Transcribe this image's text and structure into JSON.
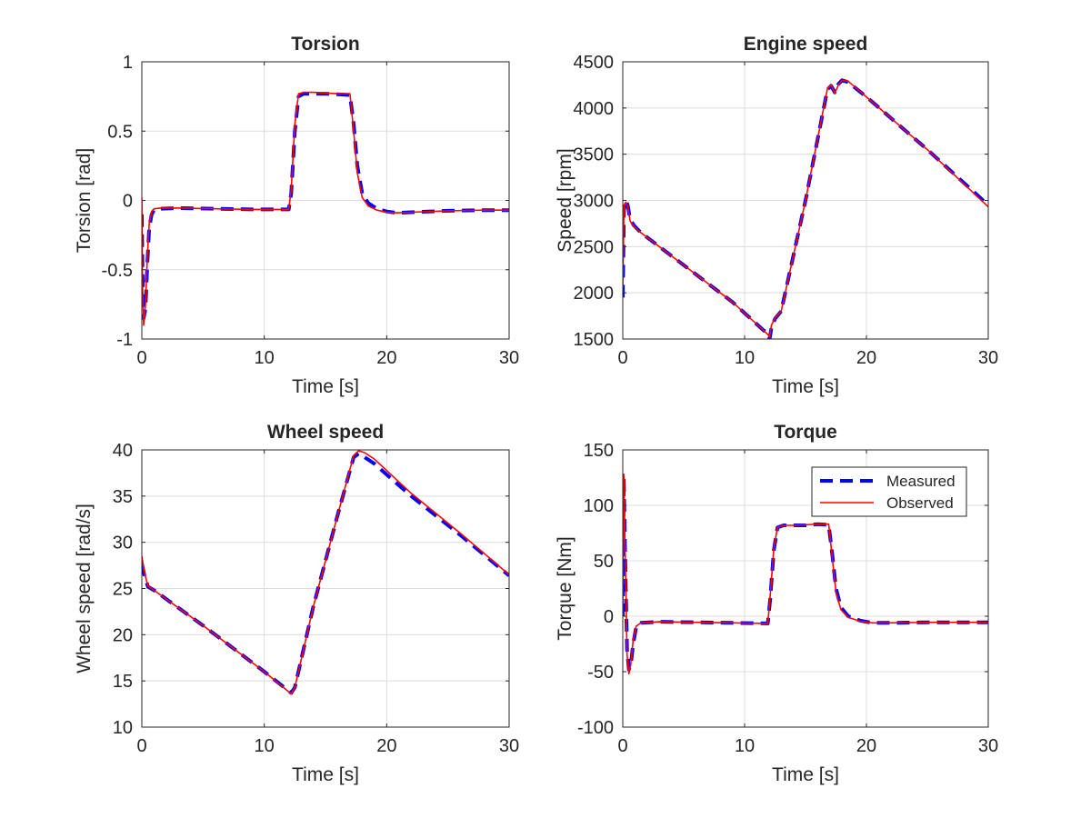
{
  "chart_data": [
    {
      "type": "line",
      "title": "Torsion",
      "xlabel": "Time [s]",
      "ylabel": "Torsion [rad]",
      "xlim": [
        0,
        30
      ],
      "ylim": [
        -1,
        1
      ],
      "xticks": [
        0,
        10,
        20,
        30
      ],
      "yticks": [
        -1,
        -0.5,
        0,
        0.5,
        1
      ],
      "ytick_labels": [
        "-1",
        "-0.5",
        "0",
        "0.5",
        "1"
      ],
      "grid": true,
      "series": [
        {
          "name": "Measured",
          "color": "#0000ff",
          "style": "dashed",
          "x": [
            0,
            0.05,
            0.15,
            0.3,
            0.45,
            0.6,
            0.8,
            1.0,
            1.5,
            3,
            6,
            9,
            12.0,
            12.2,
            12.5,
            12.8,
            13.2,
            14,
            15,
            16,
            17.0,
            17.3,
            17.6,
            18.0,
            18.5,
            19.2,
            20,
            20.8,
            22,
            25,
            28,
            30
          ],
          "y": [
            -0.1,
            -0.5,
            -0.85,
            -0.78,
            -0.45,
            -0.2,
            -0.1,
            -0.07,
            -0.06,
            -0.055,
            -0.06,
            -0.065,
            -0.065,
            0.05,
            0.5,
            0.75,
            0.77,
            0.77,
            0.77,
            0.765,
            0.76,
            0.55,
            0.25,
            0.05,
            -0.02,
            -0.06,
            -0.08,
            -0.09,
            -0.085,
            -0.075,
            -0.07,
            -0.07
          ]
        },
        {
          "name": "Observed",
          "color": "#ff0000",
          "style": "solid",
          "x": [
            0,
            0.05,
            0.15,
            0.3,
            0.45,
            0.6,
            0.8,
            1.0,
            1.5,
            3,
            6,
            9,
            12.0,
            12.2,
            12.5,
            12.8,
            13.2,
            14,
            15,
            16,
            17.0,
            17.3,
            17.6,
            18.0,
            18.5,
            19.2,
            20,
            20.8,
            22,
            25,
            28,
            30
          ],
          "y": [
            0.02,
            -0.6,
            -0.9,
            -0.75,
            -0.4,
            -0.17,
            -0.08,
            -0.06,
            -0.055,
            -0.055,
            -0.06,
            -0.065,
            -0.065,
            0.08,
            0.55,
            0.77,
            0.78,
            0.78,
            0.775,
            0.77,
            0.77,
            0.5,
            0.2,
            0.02,
            -0.04,
            -0.07,
            -0.085,
            -0.09,
            -0.085,
            -0.075,
            -0.07,
            -0.07
          ]
        }
      ]
    },
    {
      "type": "line",
      "title": "Engine speed",
      "xlabel": "Time [s]",
      "ylabel": "Speed [rpm]",
      "xlim": [
        0,
        30
      ],
      "ylim": [
        1500,
        4500
      ],
      "xticks": [
        0,
        10,
        20,
        30
      ],
      "yticks": [
        1500,
        2000,
        2500,
        3000,
        3500,
        4000,
        4500
      ],
      "ytick_labels": [
        "1500",
        "2000",
        "2500",
        "3000",
        "3500",
        "4000",
        "4500"
      ],
      "grid": true,
      "series": [
        {
          "name": "Measured",
          "color": "#0000ff",
          "style": "dashed",
          "x": [
            0,
            0.1,
            0.25,
            0.4,
            0.6,
            0.9,
            1.5,
            5,
            9,
            11.5,
            11.9,
            12.05,
            12.2,
            12.5,
            13,
            15,
            16.8,
            17.1,
            17.4,
            17.7,
            18.0,
            18.5,
            20,
            25,
            30
          ],
          "y": [
            1950,
            2900,
            3000,
            2950,
            2800,
            2730,
            2650,
            2300,
            1900,
            1600,
            1560,
            1500,
            1620,
            1720,
            1800,
            3000,
            4200,
            4240,
            4170,
            4260,
            4300,
            4280,
            4120,
            3550,
            2950
          ]
        },
        {
          "name": "Observed",
          "color": "#ff0000",
          "style": "solid",
          "x": [
            0,
            0.1,
            0.25,
            0.4,
            0.6,
            0.9,
            1.5,
            5,
            9,
            11.5,
            11.9,
            12.05,
            12.2,
            12.5,
            13,
            15,
            16.8,
            17.1,
            17.4,
            17.7,
            18.0,
            18.5,
            20,
            25,
            30
          ],
          "y": [
            2050,
            2950,
            2980,
            2940,
            2780,
            2720,
            2650,
            2300,
            1900,
            1600,
            1550,
            1520,
            1650,
            1730,
            1800,
            3000,
            4210,
            4250,
            4160,
            4250,
            4300,
            4290,
            4120,
            3550,
            2930
          ]
        }
      ]
    },
    {
      "type": "line",
      "title": "Wheel speed",
      "xlabel": "Time [s]",
      "ylabel": "Wheel speed [rad/s]",
      "xlim": [
        0,
        30
      ],
      "ylim": [
        10,
        40
      ],
      "xticks": [
        0,
        10,
        20,
        30
      ],
      "yticks": [
        10,
        15,
        20,
        25,
        30,
        35,
        40
      ],
      "ytick_labels": [
        "10",
        "15",
        "20",
        "25",
        "30",
        "35",
        "40"
      ],
      "grid": true,
      "series": [
        {
          "name": "Measured",
          "color": "#0000ff",
          "style": "dashed",
          "x": [
            0,
            0.2,
            0.5,
            1.0,
            5,
            10,
            12.2,
            12.5,
            14,
            16,
            17.3,
            17.7,
            18.2,
            19,
            22,
            26,
            30
          ],
          "y": [
            27.7,
            26.5,
            25.2,
            24.8,
            21,
            16,
            13.7,
            14.3,
            23,
            33,
            39.2,
            39.6,
            39.2,
            38.5,
            35,
            30.8,
            26.4
          ]
        },
        {
          "name": "Observed",
          "color": "#ff0000",
          "style": "solid",
          "x": [
            0,
            0.2,
            0.5,
            1.0,
            5,
            10,
            12.2,
            12.5,
            14,
            16,
            17.3,
            17.7,
            18.2,
            19,
            22,
            26,
            30
          ],
          "y": [
            28.5,
            26.8,
            25.3,
            24.8,
            21,
            16,
            13.6,
            14.3,
            23,
            33,
            39.4,
            39.9,
            39.7,
            39,
            35.3,
            31,
            26.5
          ]
        }
      ]
    },
    {
      "type": "line",
      "title": "Torque",
      "xlabel": "Time [s]",
      "ylabel": "Torque [Nm]",
      "xlim": [
        0,
        30
      ],
      "ylim": [
        -100,
        150
      ],
      "xticks": [
        0,
        10,
        20,
        30
      ],
      "yticks": [
        -100,
        -50,
        0,
        50,
        100,
        150
      ],
      "ytick_labels": [
        "-100",
        "-50",
        "0",
        "50",
        "100",
        "150"
      ],
      "grid": true,
      "legend": {
        "position": "top-right",
        "entries": [
          "Measured",
          "Observed"
        ]
      },
      "series": [
        {
          "name": "Measured",
          "color": "#0000ff",
          "style": "dashed",
          "x": [
            0,
            0.08,
            0.2,
            0.35,
            0.5,
            0.65,
            0.85,
            1.1,
            1.5,
            3,
            6,
            9,
            11.9,
            12.1,
            12.4,
            12.7,
            13.2,
            14,
            15,
            16,
            16.9,
            17.2,
            17.5,
            17.9,
            18.5,
            19.5,
            20.5,
            22,
            25,
            28,
            30
          ],
          "y": [
            0,
            125,
            50,
            -30,
            -48,
            -45,
            -25,
            -10,
            -6,
            -5,
            -5.5,
            -6,
            -6.5,
            15,
            60,
            80,
            82,
            82,
            82,
            83,
            82.5,
            55,
            25,
            8,
            0,
            -4,
            -6,
            -6,
            -5.5,
            -5.5,
            -5.5
          ]
        },
        {
          "name": "Observed",
          "color": "#ff0000",
          "style": "solid",
          "x": [
            0,
            0.08,
            0.2,
            0.35,
            0.5,
            0.65,
            0.85,
            1.1,
            1.5,
            3,
            6,
            9,
            11.9,
            12.1,
            12.4,
            12.7,
            13.2,
            14,
            15,
            16,
            16.9,
            17.2,
            17.5,
            17.9,
            18.5,
            19.5,
            20.5,
            22,
            25,
            28,
            30
          ],
          "y": [
            0,
            128,
            55,
            -35,
            -52,
            -44,
            -22,
            -9,
            -6,
            -5,
            -5.5,
            -6,
            -6.5,
            18,
            62,
            80,
            82,
            82,
            82.5,
            83,
            83,
            52,
            22,
            6,
            -1,
            -4.5,
            -6,
            -6,
            -5.5,
            -5.5,
            -5.5
          ]
        }
      ]
    }
  ]
}
